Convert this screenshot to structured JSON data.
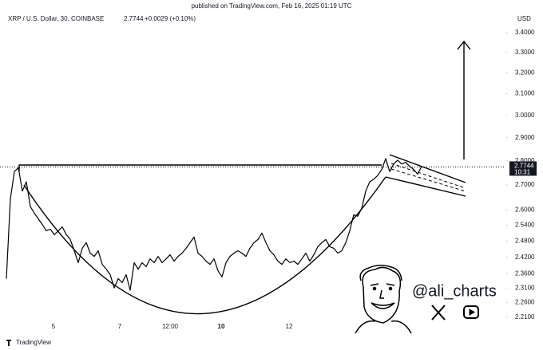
{
  "chart_data": {
    "type": "line",
    "source": "published on TradingView.com, Feb 16, 2025 01:19 UTC",
    "title": "XRP / U.S. Dollar, 30, COINBASE",
    "last_price": 2.7744,
    "change": "+0.0029 (+0.10%)",
    "countdown": "10:31",
    "y_axis_label": "USD",
    "footer": "TradingView",
    "watermark": "@ali_charts",
    "log_scale": true,
    "grid": false,
    "x": [
      0,
      1,
      2,
      3,
      4,
      5,
      6,
      7,
      8,
      9,
      10,
      11,
      12,
      13,
      14,
      15,
      16,
      17,
      18,
      19,
      20,
      21,
      22,
      23,
      24,
      25,
      26,
      27,
      28,
      29,
      30,
      31,
      32,
      33,
      34,
      35,
      36,
      37,
      38,
      39,
      40,
      41,
      42,
      43,
      44,
      45,
      46,
      47,
      48,
      49,
      50,
      51,
      52,
      53,
      54,
      55,
      56,
      57,
      58,
      59,
      60,
      61,
      62,
      63,
      64,
      65,
      66,
      67,
      68,
      69,
      70,
      71,
      72,
      73,
      74,
      75,
      76,
      77,
      78,
      79,
      80,
      81,
      82,
      83,
      84,
      85,
      86,
      87,
      88,
      89,
      90,
      91,
      92,
      93,
      94,
      95,
      96,
      97,
      98,
      99,
      100,
      101,
      102,
      103,
      104
    ],
    "series": [
      {
        "name": "XRP",
        "color": "#000000",
        "values": [
          2.343,
          2.644,
          2.755,
          2.771,
          2.675,
          2.713,
          2.613,
          2.587,
          2.565,
          2.543,
          2.519,
          2.525,
          2.504,
          2.519,
          2.534,
          2.504,
          2.486,
          2.444,
          2.4,
          2.453,
          2.474,
          2.435,
          2.423,
          2.444,
          2.394,
          2.377,
          2.357,
          2.31,
          2.343,
          2.329,
          2.357,
          2.302,
          2.4,
          2.377,
          2.4,
          2.386,
          2.414,
          2.4,
          2.423,
          2.4,
          2.414,
          2.429,
          2.406,
          2.423,
          2.435,
          2.453,
          2.474,
          2.495,
          2.435,
          2.423,
          2.406,
          2.394,
          2.414,
          2.371,
          2.349,
          2.4,
          2.423,
          2.435,
          2.444,
          2.435,
          2.423,
          2.453,
          2.474,
          2.486,
          2.51,
          2.474,
          2.444,
          2.429,
          2.406,
          2.394,
          2.414,
          2.4,
          2.406,
          2.394,
          2.414,
          2.435,
          2.406,
          2.429,
          2.459,
          2.474,
          2.486,
          2.459,
          2.453,
          2.435,
          2.444,
          2.474,
          2.519,
          2.581,
          2.575,
          2.606,
          2.675,
          2.713,
          2.723,
          2.739,
          2.764,
          2.81,
          2.755,
          2.787,
          2.803,
          2.787,
          2.794,
          2.777,
          2.764,
          2.745,
          2.777
        ]
      }
    ],
    "xlim": [
      0,
      125
    ],
    "xticks": [
      {
        "value": 11.8,
        "label": "5"
      },
      {
        "value": 28.4,
        "label": "7"
      },
      {
        "value": 41,
        "label": "12:00"
      },
      {
        "value": 53.8,
        "label": "10"
      },
      {
        "value": 70.8,
        "label": "12"
      }
    ],
    "ylim": [
      2.157,
      3.487
    ],
    "yticks": [
      {
        "value": 3.4,
        "label": "3.4000"
      },
      {
        "value": 3.3,
        "label": "3.3000"
      },
      {
        "value": 3.2,
        "label": "3.2000"
      },
      {
        "value": 3.1,
        "label": "3.1000"
      },
      {
        "value": 3.0,
        "label": "3.0000"
      },
      {
        "value": 2.9,
        "label": "2.9000"
      },
      {
        "value": 2.8,
        "label": "2.8000"
      },
      {
        "value": 2.7,
        "label": "2.7000"
      },
      {
        "value": 2.6,
        "label": "2.6000"
      },
      {
        "value": 2.54,
        "label": "2.5400"
      },
      {
        "value": 2.48,
        "label": "2.4800"
      },
      {
        "value": 2.42,
        "label": "2.4200"
      },
      {
        "value": 2.36,
        "label": "2.3600"
      },
      {
        "value": 2.31,
        "label": "2.3100"
      },
      {
        "value": 2.26,
        "label": "2.2600"
      },
      {
        "value": 2.21,
        "label": "2.2100"
      }
    ]
  }
}
